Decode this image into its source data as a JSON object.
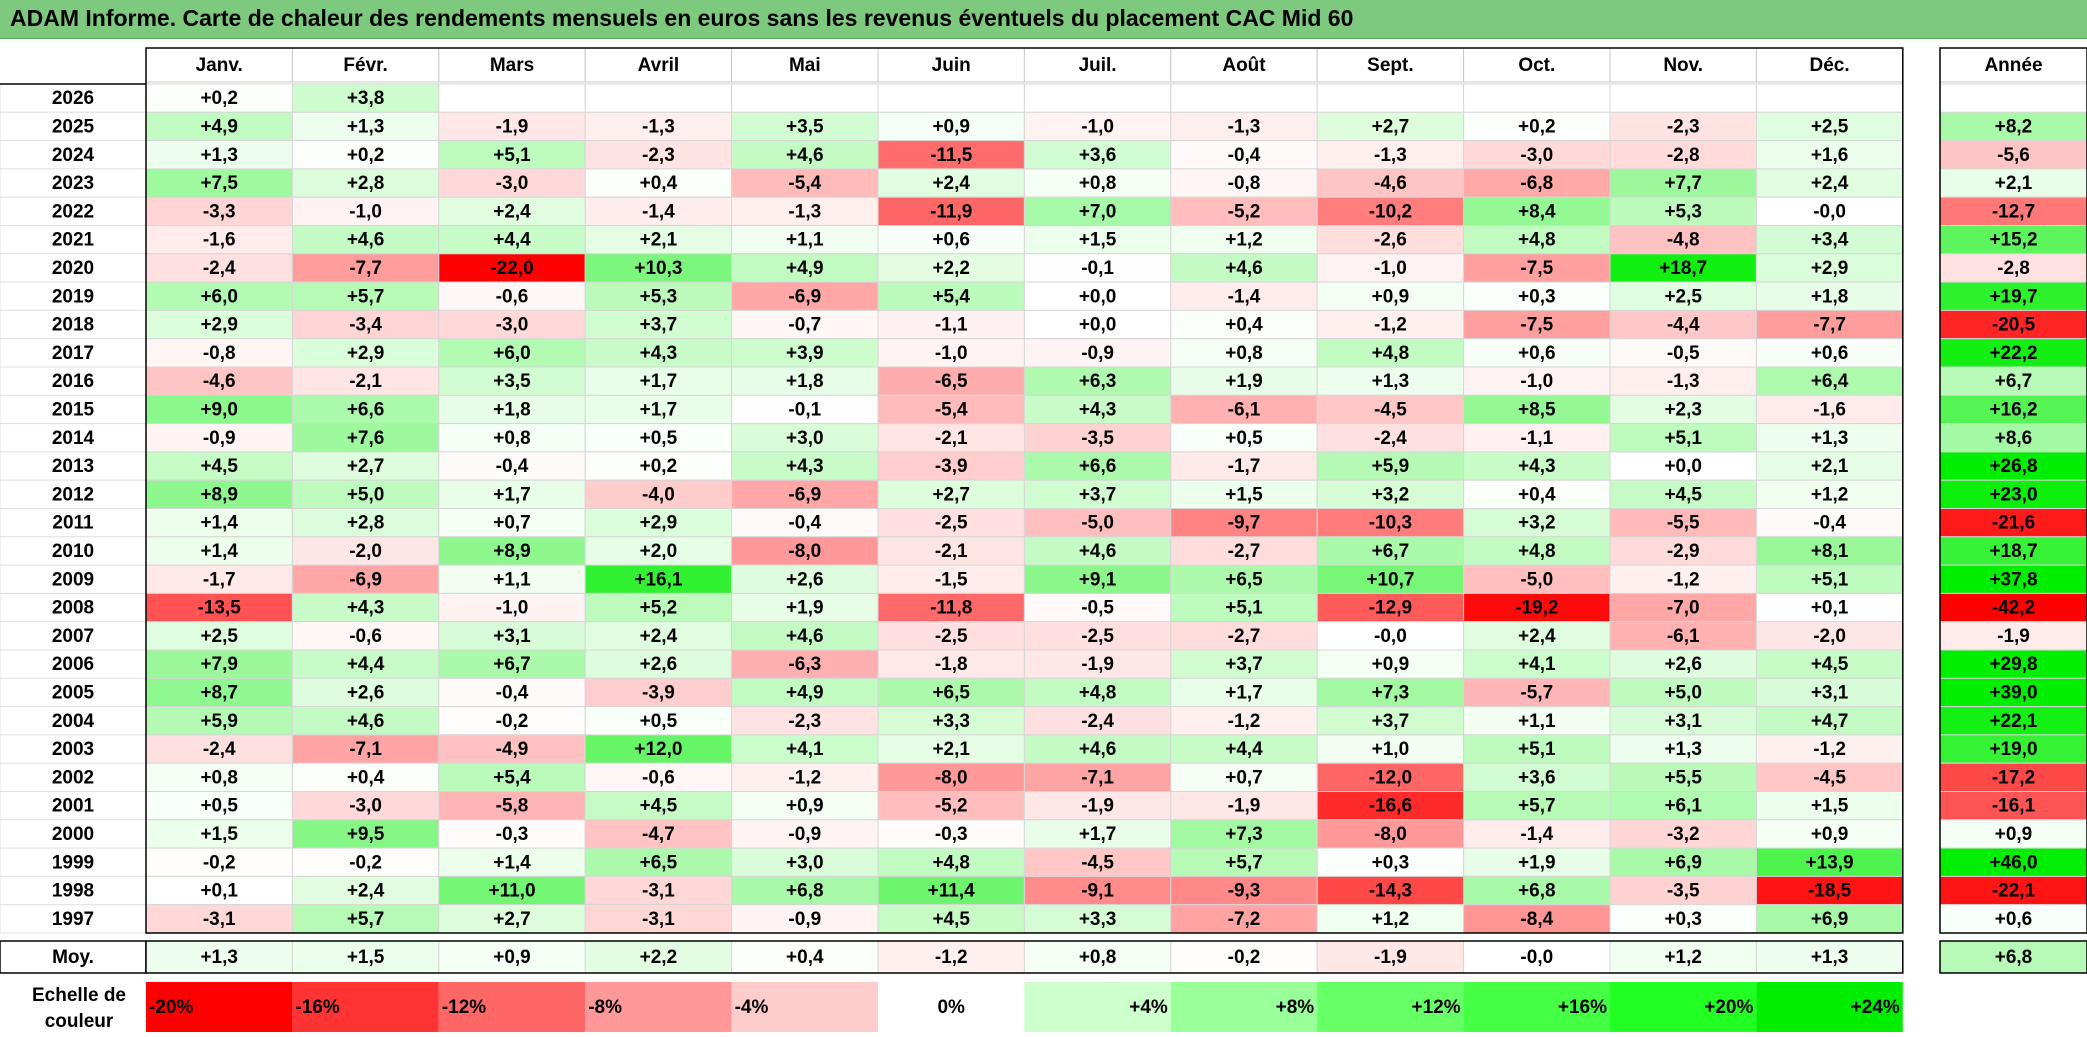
{
  "title": "ADAM Informe. Carte de chaleur des rendements mensuels en euros sans les revenus éventuels du placement CAC Mid 60",
  "chart_data": {
    "type": "heatmap",
    "title": "ADAM Informe. Carte de chaleur des rendements mensuels en euros sans les revenus éventuels du placement CAC Mid 60",
    "columns": [
      "Janv.",
      "Févr.",
      "Mars",
      "Avril",
      "Mai",
      "Juin",
      "Juil.",
      "Août",
      "Sept.",
      "Oct.",
      "Nov.",
      "Déc."
    ],
    "year_column": "Année",
    "rows": [
      {
        "year": "2026",
        "months": [
          "+0,2",
          "+3,8",
          "",
          "",
          "",
          "",
          "",
          "",
          "",
          "",
          "",
          ""
        ],
        "annual": ""
      },
      {
        "year": "2025",
        "months": [
          "+4,9",
          "+1,3",
          "-1,9",
          "-1,3",
          "+3,5",
          "+0,9",
          "-1,0",
          "-1,3",
          "+2,7",
          "+0,2",
          "-2,3",
          "+2,5"
        ],
        "annual": "+8,2"
      },
      {
        "year": "2024",
        "months": [
          "+1,3",
          "+0,2",
          "+5,1",
          "-2,3",
          "+4,6",
          "-11,5",
          "+3,6",
          "-0,4",
          "-1,3",
          "-3,0",
          "-2,8",
          "+1,6"
        ],
        "annual": "-5,6"
      },
      {
        "year": "2023",
        "months": [
          "+7,5",
          "+2,8",
          "-3,0",
          "+0,4",
          "-5,4",
          "+2,4",
          "+0,8",
          "-0,8",
          "-4,6",
          "-6,8",
          "+7,7",
          "+2,4"
        ],
        "annual": "+2,1"
      },
      {
        "year": "2022",
        "months": [
          "-3,3",
          "-1,0",
          "+2,4",
          "-1,4",
          "-1,3",
          "-11,9",
          "+7,0",
          "-5,2",
          "-10,2",
          "+8,4",
          "+5,3",
          "-0,0"
        ],
        "annual": "-12,7"
      },
      {
        "year": "2021",
        "months": [
          "-1,6",
          "+4,6",
          "+4,4",
          "+2,1",
          "+1,1",
          "+0,6",
          "+1,5",
          "+1,2",
          "-2,6",
          "+4,8",
          "-4,8",
          "+3,4"
        ],
        "annual": "+15,2"
      },
      {
        "year": "2020",
        "months": [
          "-2,4",
          "-7,7",
          "-22,0",
          "+10,3",
          "+4,9",
          "+2,2",
          "-0,1",
          "+4,6",
          "-1,0",
          "-7,5",
          "+18,7",
          "+2,9"
        ],
        "annual": "-2,8"
      },
      {
        "year": "2019",
        "months": [
          "+6,0",
          "+5,7",
          "-0,6",
          "+5,3",
          "-6,9",
          "+5,4",
          "+0,0",
          "-1,4",
          "+0,9",
          "+0,3",
          "+2,5",
          "+1,8"
        ],
        "annual": "+19,7"
      },
      {
        "year": "2018",
        "months": [
          "+2,9",
          "-3,4",
          "-3,0",
          "+3,7",
          "-0,7",
          "-1,1",
          "+0,0",
          "+0,4",
          "-1,2",
          "-7,5",
          "-4,4",
          "-7,7"
        ],
        "annual": "-20,5"
      },
      {
        "year": "2017",
        "months": [
          "-0,8",
          "+2,9",
          "+6,0",
          "+4,3",
          "+3,9",
          "-1,0",
          "-0,9",
          "+0,8",
          "+4,8",
          "+0,6",
          "-0,5",
          "+0,6"
        ],
        "annual": "+22,2"
      },
      {
        "year": "2016",
        "months": [
          "-4,6",
          "-2,1",
          "+3,5",
          "+1,7",
          "+1,8",
          "-6,5",
          "+6,3",
          "+1,9",
          "+1,3",
          "-1,0",
          "-1,3",
          "+6,4"
        ],
        "annual": "+6,7"
      },
      {
        "year": "2015",
        "months": [
          "+9,0",
          "+6,6",
          "+1,8",
          "+1,7",
          "-0,1",
          "-5,4",
          "+4,3",
          "-6,1",
          "-4,5",
          "+8,5",
          "+2,3",
          "-1,6"
        ],
        "annual": "+16,2"
      },
      {
        "year": "2014",
        "months": [
          "-0,9",
          "+7,6",
          "+0,8",
          "+0,5",
          "+3,0",
          "-2,1",
          "-3,5",
          "+0,5",
          "-2,4",
          "-1,1",
          "+5,1",
          "+1,3"
        ],
        "annual": "+8,6"
      },
      {
        "year": "2013",
        "months": [
          "+4,5",
          "+2,7",
          "-0,4",
          "+0,2",
          "+4,3",
          "-3,9",
          "+6,6",
          "-1,7",
          "+5,9",
          "+4,3",
          "+0,0",
          "+2,1"
        ],
        "annual": "+26,8"
      },
      {
        "year": "2012",
        "months": [
          "+8,9",
          "+5,0",
          "+1,7",
          "-4,0",
          "-6,9",
          "+2,7",
          "+3,7",
          "+1,5",
          "+3,2",
          "+0,4",
          "+4,5",
          "+1,2"
        ],
        "annual": "+23,0"
      },
      {
        "year": "2011",
        "months": [
          "+1,4",
          "+2,8",
          "+0,7",
          "+2,9",
          "-0,4",
          "-2,5",
          "-5,0",
          "-9,7",
          "-10,3",
          "+3,2",
          "-5,5",
          "-0,4"
        ],
        "annual": "-21,6"
      },
      {
        "year": "2010",
        "months": [
          "+1,4",
          "-2,0",
          "+8,9",
          "+2,0",
          "-8,0",
          "-2,1",
          "+4,6",
          "-2,7",
          "+6,7",
          "+4,8",
          "-2,9",
          "+8,1"
        ],
        "annual": "+18,7"
      },
      {
        "year": "2009",
        "months": [
          "-1,7",
          "-6,9",
          "+1,1",
          "+16,1",
          "+2,6",
          "-1,5",
          "+9,1",
          "+6,5",
          "+10,7",
          "-5,0",
          "-1,2",
          "+5,1"
        ],
        "annual": "+37,8"
      },
      {
        "year": "2008",
        "months": [
          "-13,5",
          "+4,3",
          "-1,0",
          "+5,2",
          "+1,9",
          "-11,8",
          "-0,5",
          "+5,1",
          "-12,9",
          "-19,2",
          "-7,0",
          "+0,1"
        ],
        "annual": "-42,2"
      },
      {
        "year": "2007",
        "months": [
          "+2,5",
          "-0,6",
          "+3,1",
          "+2,4",
          "+4,6",
          "-2,5",
          "-2,5",
          "-2,7",
          "-0,0",
          "+2,4",
          "-6,1",
          "-2,0"
        ],
        "annual": "-1,9"
      },
      {
        "year": "2006",
        "months": [
          "+7,9",
          "+4,4",
          "+6,7",
          "+2,6",
          "-6,3",
          "-1,8",
          "-1,9",
          "+3,7",
          "+0,9",
          "+4,1",
          "+2,6",
          "+4,5"
        ],
        "annual": "+29,8"
      },
      {
        "year": "2005",
        "months": [
          "+8,7",
          "+2,6",
          "-0,4",
          "-3,9",
          "+4,9",
          "+6,5",
          "+4,8",
          "+1,7",
          "+7,3",
          "-5,7",
          "+5,0",
          "+3,1"
        ],
        "annual": "+39,0"
      },
      {
        "year": "2004",
        "months": [
          "+5,9",
          "+4,6",
          "-0,2",
          "+0,5",
          "-2,3",
          "+3,3",
          "-2,4",
          "-1,2",
          "+3,7",
          "+1,1",
          "+3,1",
          "+4,7"
        ],
        "annual": "+22,1"
      },
      {
        "year": "2003",
        "months": [
          "-2,4",
          "-7,1",
          "-4,9",
          "+12,0",
          "+4,1",
          "+2,1",
          "+4,6",
          "+4,4",
          "+1,0",
          "+5,1",
          "+1,3",
          "-1,2"
        ],
        "annual": "+19,0"
      },
      {
        "year": "2002",
        "months": [
          "+0,8",
          "+0,4",
          "+5,4",
          "-0,6",
          "-1,2",
          "-8,0",
          "-7,1",
          "+0,7",
          "-12,0",
          "+3,6",
          "+5,5",
          "-4,5"
        ],
        "annual": "-17,2"
      },
      {
        "year": "2001",
        "months": [
          "+0,5",
          "-3,0",
          "-5,8",
          "+4,5",
          "+0,9",
          "-5,2",
          "-1,9",
          "-1,9",
          "-16,6",
          "+5,7",
          "+6,1",
          "+1,5"
        ],
        "annual": "-16,1"
      },
      {
        "year": "2000",
        "months": [
          "+1,5",
          "+9,5",
          "-0,3",
          "-4,7",
          "-0,9",
          "-0,3",
          "+1,7",
          "+7,3",
          "-8,0",
          "-1,4",
          "-3,2",
          "+0,9"
        ],
        "annual": "+0,9"
      },
      {
        "year": "1999",
        "months": [
          "-0,2",
          "-0,2",
          "+1,4",
          "+6,5",
          "+3,0",
          "+4,8",
          "-4,5",
          "+5,7",
          "+0,3",
          "+1,9",
          "+6,9",
          "+13,9"
        ],
        "annual": "+46,0"
      },
      {
        "year": "1998",
        "months": [
          "+0,1",
          "+2,4",
          "+11,0",
          "-3,1",
          "+6,8",
          "+11,4",
          "-9,1",
          "-9,3",
          "-14,3",
          "+6,8",
          "-3,5",
          "-18,5"
        ],
        "annual": "-22,1"
      },
      {
        "year": "1997",
        "months": [
          "-3,1",
          "+5,7",
          "+2,7",
          "-3,1",
          "-0,9",
          "+4,5",
          "+3,3",
          "-7,2",
          "+1,2",
          "-8,4",
          "+0,3",
          "+6,9"
        ],
        "annual": "+0,6"
      }
    ],
    "average": {
      "label": "Moy.",
      "months": [
        "+1,3",
        "+1,5",
        "+0,9",
        "+2,2",
        "+0,4",
        "-1,2",
        "+0,8",
        "-0,2",
        "-1,9",
        "-0,0",
        "+1,2",
        "+1,3"
      ],
      "annual": "+6,8"
    },
    "color_scale": {
      "label": "Echelle de couleur",
      "steps": [
        {
          "label": "-20%",
          "value": -20,
          "color": "#ff0000"
        },
        {
          "label": "-16%",
          "value": -16,
          "color": "#ff3333"
        },
        {
          "label": "-12%",
          "value": -12,
          "color": "#ff6666"
        },
        {
          "label": "-8%",
          "value": -8,
          "color": "#ff9999"
        },
        {
          "label": "-4%",
          "value": -4,
          "color": "#ffcccc"
        },
        {
          "label": "0%",
          "value": 0,
          "color": "#ffffff"
        },
        {
          "label": "+4%",
          "value": 4,
          "color": "#ccffcc"
        },
        {
          "label": "+8%",
          "value": 8,
          "color": "#99ff99"
        },
        {
          "label": "+12%",
          "value": 12,
          "color": "#66ff66"
        },
        {
          "label": "+16%",
          "value": 16,
          "color": "#44ff44"
        },
        {
          "label": "+20%",
          "value": 20,
          "color": "#22ff22"
        },
        {
          "label": "+24%",
          "value": 24,
          "color": "#00ee00"
        }
      ]
    }
  }
}
